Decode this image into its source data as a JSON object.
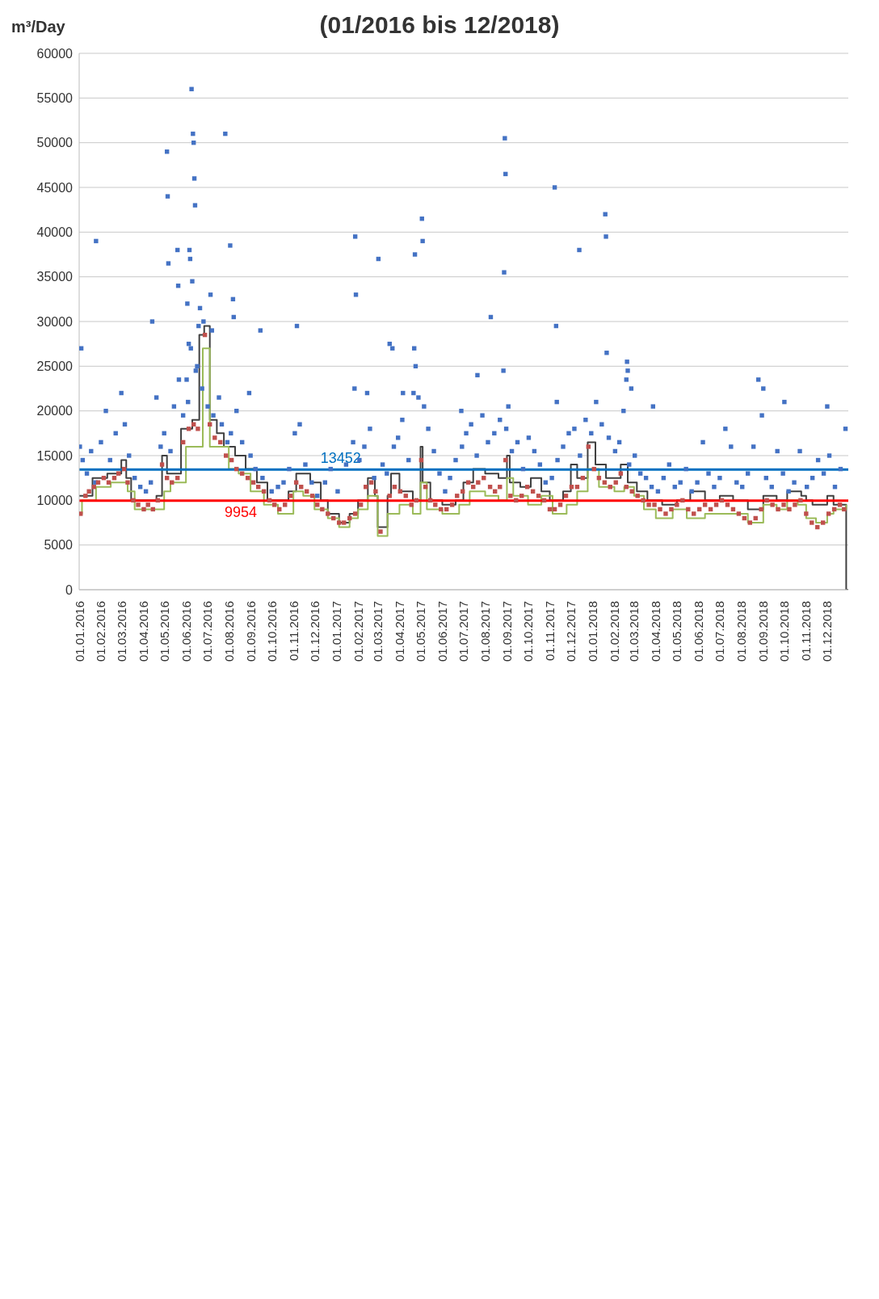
{
  "chart_data": {
    "type": "scatter",
    "title": "(01/2016 bis 12/2018)",
    "ylabel": "m³/Day",
    "xlim": [
      "2016-01-01",
      "2018-12-31"
    ],
    "ylim": [
      0,
      60000
    ],
    "yticks": [
      0,
      5000,
      10000,
      15000,
      20000,
      25000,
      30000,
      35000,
      40000,
      45000,
      50000,
      55000,
      60000
    ],
    "xticks": [
      {
        "value": "2016-01-01",
        "label": "01.01.2016"
      },
      {
        "value": "2016-02-01",
        "label": "01.02.2016"
      },
      {
        "value": "2016-03-01",
        "label": "01.03.2016"
      },
      {
        "value": "2016-04-01",
        "label": "01.04.2016"
      },
      {
        "value": "2016-05-01",
        "label": "01.05.2016"
      },
      {
        "value": "2016-06-01",
        "label": "01.06.2016"
      },
      {
        "value": "2016-07-01",
        "label": "01.07.2016"
      },
      {
        "value": "2016-08-01",
        "label": "01.08.2016"
      },
      {
        "value": "2016-09-01",
        "label": "01.09.2016"
      },
      {
        "value": "2016-10-01",
        "label": "01.10.2016"
      },
      {
        "value": "2016-11-01",
        "label": "01.11.2016"
      },
      {
        "value": "2016-12-01",
        "label": "01.12.2016"
      },
      {
        "value": "2017-01-01",
        "label": "01.01.2017"
      },
      {
        "value": "2017-02-01",
        "label": "01.02.2017"
      },
      {
        "value": "2017-03-01",
        "label": "01.03.2017"
      },
      {
        "value": "2017-04-01",
        "label": "01.04.2017"
      },
      {
        "value": "2017-05-01",
        "label": "01.05.2017"
      },
      {
        "value": "2017-06-01",
        "label": "01.06.2017"
      },
      {
        "value": "2017-07-01",
        "label": "01.07.2017"
      },
      {
        "value": "2017-08-01",
        "label": "01.08.2017"
      },
      {
        "value": "2017-09-01",
        "label": "01.09.2017"
      },
      {
        "value": "2017-10-01",
        "label": "01.10.2017"
      },
      {
        "value": "2017-11-01",
        "label": "01.11.2017"
      },
      {
        "value": "2017-12-01",
        "label": "01.12.2017"
      },
      {
        "value": "2018-01-01",
        "label": "01.01.2018"
      },
      {
        "value": "2018-02-01",
        "label": "01.02.2018"
      },
      {
        "value": "2018-03-01",
        "label": "01.03.2018"
      },
      {
        "value": "2018-04-01",
        "label": "01.04.2018"
      },
      {
        "value": "2018-05-01",
        "label": "01.05.2018"
      },
      {
        "value": "2018-06-01",
        "label": "01.06.2018"
      },
      {
        "value": "2018-07-01",
        "label": "01.07.2018"
      },
      {
        "value": "2018-08-01",
        "label": "01.08.2018"
      },
      {
        "value": "2018-09-01",
        "label": "01.09.2018"
      },
      {
        "value": "2018-10-01",
        "label": "01.10.2018"
      },
      {
        "value": "2018-11-01",
        "label": "01.11.2018"
      },
      {
        "value": "2018-12-01",
        "label": "01.12.2018"
      }
    ],
    "grid": "y",
    "marker": "square",
    "ref_lines": [
      {
        "axis": "y",
        "value": 13452,
        "label": "13452",
        "color": "#0070c0"
      },
      {
        "axis": "y",
        "value": 9954,
        "label": "9954",
        "color": "#ff0000"
      }
    ],
    "series": [
      {
        "color": "#4472c4",
        "x": [
          "2016-06-09",
          "2016-07-27",
          "2016-06-11",
          "2016-06-12",
          "2016-05-05",
          "2017-08-29",
          "2017-08-30",
          "2016-06-13",
          "2016-05-06",
          "2017-11-08",
          "2016-06-14",
          "2018-01-19",
          "2018-01-20",
          "2017-05-03",
          "2017-05-04",
          "2017-04-23",
          "2017-12-13",
          "2017-03-02",
          "2017-01-28",
          "2017-01-29",
          "2017-08-28",
          "2016-08-03",
          "2016-01-25",
          "2016-05-20",
          "2016-06-06",
          "2016-06-07",
          "2016-05-07",
          "2016-06-10",
          "2016-05-21",
          "2016-07-06",
          "2016-08-07",
          "2016-06-03",
          "2016-11-06",
          "2016-06-26",
          "2016-08-08",
          "2016-09-15",
          "2016-06-21",
          "2016-06-19",
          "2016-07-08",
          "2016-04-14",
          "2017-08-09",
          "2017-11-10",
          "2016-01-04",
          "2016-06-08",
          "2016-06-05",
          "2017-03-18",
          "2017-03-22",
          "2017-04-22",
          "2018-01-21",
          "2018-02-19",
          "2018-02-20",
          "2017-04-24",
          "2017-08-27",
          "2017-07-21",
          "2018-02-18",
          "2018-08-25",
          "2018-09-01",
          "2018-02-25",
          "2017-01-27",
          "2017-02-14",
          "2016-08-30",
          "2017-04-06",
          "2017-04-21",
          "2018-10-01",
          "2018-12-01",
          "2018-08-30",
          "2018-03-28",
          "2017-11-11",
          "2017-09-03",
          "2017-06-28",
          "2016-04-20",
          "2016-06-02",
          "2016-01-02",
          "2016-01-06",
          "2016-01-12",
          "2016-01-18",
          "2016-01-24",
          "2016-02-01",
          "2016-02-08",
          "2016-02-14",
          "2016-02-22",
          "2016-03-01",
          "2016-03-06",
          "2016-03-12",
          "2016-03-20",
          "2016-03-28",
          "2016-04-05",
          "2016-04-12",
          "2016-04-26",
          "2016-05-01",
          "2016-05-10",
          "2016-05-15",
          "2016-05-22",
          "2016-05-28",
          "2016-06-04",
          "2016-06-15",
          "2016-06-17",
          "2016-06-24",
          "2016-07-02",
          "2016-07-10",
          "2016-07-18",
          "2016-07-22",
          "2016-07-30",
          "2016-08-04",
          "2016-08-12",
          "2016-08-20",
          "2016-09-01",
          "2016-09-08",
          "2016-09-18",
          "2016-10-01",
          "2016-10-10",
          "2016-10-18",
          "2016-10-26",
          "2016-11-03",
          "2016-11-10",
          "2016-11-18",
          "2016-11-27",
          "2016-12-05",
          "2016-12-16",
          "2016-12-24",
          "2017-01-03",
          "2017-01-15",
          "2017-01-25",
          "2017-02-03",
          "2017-02-10",
          "2017-02-18",
          "2017-02-24",
          "2017-03-08",
          "2017-03-14",
          "2017-03-24",
          "2017-03-30",
          "2017-04-05",
          "2017-04-14",
          "2017-04-28",
          "2017-05-06",
          "2017-05-12",
          "2017-05-20",
          "2017-05-28",
          "2017-06-05",
          "2017-06-12",
          "2017-06-20",
          "2017-06-29",
          "2017-07-05",
          "2017-07-12",
          "2017-07-20",
          "2017-07-28",
          "2017-08-05",
          "2017-08-14",
          "2017-08-22",
          "2017-08-31",
          "2017-09-08",
          "2017-09-16",
          "2017-09-24",
          "2017-10-02",
          "2017-10-10",
          "2017-10-18",
          "2017-10-26",
          "2017-11-04",
          "2017-11-12",
          "2017-11-20",
          "2017-11-28",
          "2017-12-06",
          "2017-12-14",
          "2017-12-22",
          "2017-12-30",
          "2018-01-06",
          "2018-01-14",
          "2018-01-24",
          "2018-02-02",
          "2018-02-08",
          "2018-02-14",
          "2018-02-22",
          "2018-03-02",
          "2018-03-10",
          "2018-03-18",
          "2018-03-26",
          "2018-04-04",
          "2018-04-12",
          "2018-04-20",
          "2018-04-28",
          "2018-05-06",
          "2018-05-14",
          "2018-05-22",
          "2018-05-30",
          "2018-06-07",
          "2018-06-15",
          "2018-06-23",
          "2018-07-01",
          "2018-07-09",
          "2018-07-17",
          "2018-07-25",
          "2018-08-02",
          "2018-08-10",
          "2018-08-18",
          "2018-09-05",
          "2018-09-13",
          "2018-09-21",
          "2018-09-29",
          "2018-10-07",
          "2018-10-15",
          "2018-10-23",
          "2018-11-02",
          "2018-11-10",
          "2018-11-18",
          "2018-11-26",
          "2018-12-04",
          "2018-12-12",
          "2018-12-20",
          "2018-12-27"
        ],
        "values": [
          56000,
          51000,
          51000,
          50000,
          49000,
          50500,
          46500,
          46000,
          44000,
          45000,
          43000,
          42000,
          39500,
          41500,
          39000,
          37500,
          38000,
          37000,
          39500,
          33000,
          35500,
          38500,
          39000,
          38000,
          38000,
          37000,
          36500,
          34500,
          34000,
          33000,
          32500,
          32000,
          29500,
          30000,
          30500,
          29000,
          31500,
          29500,
          29000,
          30000,
          30500,
          29500,
          27000,
          27000,
          27500,
          27500,
          27000,
          27000,
          26500,
          25500,
          24500,
          25000,
          24500,
          24000,
          23500,
          23500,
          22500,
          22500,
          22500,
          22000,
          22000,
          22000,
          22000,
          21000,
          20500,
          19500,
          20500,
          21000,
          20500,
          20000,
          21500,
          23500,
          16000,
          14500,
          13000,
          15500,
          12000,
          16500,
          20000,
          14500,
          17500,
          22000,
          18500,
          15000,
          12500,
          11500,
          11000,
          12000,
          16000,
          17500,
          15500,
          20500,
          23500,
          19500,
          21000,
          24500,
          25000,
          22500,
          20500,
          19500,
          21500,
          18500,
          16500,
          17500,
          20000,
          16500,
          15000,
          13500,
          12500,
          11000,
          11500,
          12000,
          13500,
          17500,
          18500,
          14000,
          12000,
          10500,
          12000,
          13500,
          11000,
          14000,
          16500,
          14500,
          16000,
          18000,
          12500,
          14000,
          13000,
          16000,
          17000,
          19000,
          14500,
          21500,
          20500,
          18000,
          15500,
          13000,
          11000,
          12500,
          14500,
          16000,
          17500,
          18500,
          15000,
          19500,
          16500,
          17500,
          19000,
          18000,
          15500,
          16500,
          13500,
          17000,
          15500,
          14000,
          12000,
          12500,
          14500,
          16000,
          17500,
          18000,
          15000,
          19000,
          17500,
          21000,
          18500,
          17000,
          15500,
          16500,
          20000,
          14000,
          15000,
          13000,
          12500,
          11500,
          11000,
          12500,
          14000,
          11500,
          12000,
          13500,
          11000,
          12000,
          16500,
          13000,
          11500,
          12500,
          18000,
          16000,
          12000,
          11500,
          13000,
          16000,
          12500,
          11500,
          15500,
          13000,
          11000,
          12000,
          15500,
          11500,
          12500,
          14500,
          13000,
          15000,
          11500,
          13500,
          18000
        ]
      },
      {
        "color": "#c0504d",
        "x": [
          "2016-01-03",
          "2016-01-10",
          "2016-01-15",
          "2016-01-22",
          "2016-01-28",
          "2016-02-05",
          "2016-02-12",
          "2016-02-20",
          "2016-02-26",
          "2016-03-05",
          "2016-03-10",
          "2016-03-18",
          "2016-03-25",
          "2016-04-02",
          "2016-04-08",
          "2016-04-15",
          "2016-04-22",
          "2016-04-28",
          "2016-05-05",
          "2016-05-12",
          "2016-05-20",
          "2016-05-28",
          "2016-06-05",
          "2016-06-12",
          "2016-06-18",
          "2016-06-28",
          "2016-07-05",
          "2016-07-12",
          "2016-07-20",
          "2016-07-28",
          "2016-08-05",
          "2016-08-12",
          "2016-08-20",
          "2016-08-28",
          "2016-09-05",
          "2016-09-12",
          "2016-09-20",
          "2016-09-28",
          "2016-10-05",
          "2016-10-12",
          "2016-10-20",
          "2016-10-28",
          "2016-11-05",
          "2016-11-12",
          "2016-11-20",
          "2016-11-28",
          "2016-12-05",
          "2016-12-12",
          "2016-12-20",
          "2016-12-28",
          "2017-01-05",
          "2017-01-12",
          "2017-01-20",
          "2017-01-28",
          "2017-02-05",
          "2017-02-12",
          "2017-02-20",
          "2017-02-26",
          "2017-03-05",
          "2017-03-18",
          "2017-03-25",
          "2017-04-02",
          "2017-04-10",
          "2017-04-18",
          "2017-04-25",
          "2017-05-02",
          "2017-05-08",
          "2017-05-15",
          "2017-05-22",
          "2017-05-30",
          "2017-06-07",
          "2017-06-15",
          "2017-06-22",
          "2017-06-30",
          "2017-07-08",
          "2017-07-15",
          "2017-07-22",
          "2017-07-30",
          "2017-08-08",
          "2017-08-15",
          "2017-08-22",
          "2017-08-30",
          "2017-09-06",
          "2017-09-14",
          "2017-09-22",
          "2017-09-30",
          "2017-10-08",
          "2017-10-16",
          "2017-10-24",
          "2017-11-01",
          "2017-11-08",
          "2017-11-16",
          "2017-11-24",
          "2017-12-02",
          "2017-12-10",
          "2017-12-18",
          "2017-12-26",
          "2018-01-03",
          "2018-01-10",
          "2018-01-18",
          "2018-01-26",
          "2018-02-03",
          "2018-02-10",
          "2018-02-18",
          "2018-02-26",
          "2018-03-06",
          "2018-03-14",
          "2018-03-22",
          "2018-03-30",
          "2018-04-07",
          "2018-04-15",
          "2018-04-23",
          "2018-05-01",
          "2018-05-09",
          "2018-05-17",
          "2018-05-25",
          "2018-06-02",
          "2018-06-10",
          "2018-06-18",
          "2018-06-26",
          "2018-07-04",
          "2018-07-12",
          "2018-07-20",
          "2018-07-28",
          "2018-08-05",
          "2018-08-13",
          "2018-08-21",
          "2018-08-29",
          "2018-09-06",
          "2018-09-14",
          "2018-09-22",
          "2018-09-30",
          "2018-10-08",
          "2018-10-16",
          "2018-10-24",
          "2018-11-01",
          "2018-11-09",
          "2018-11-17",
          "2018-11-25",
          "2018-12-03",
          "2018-12-11",
          "2018-12-19",
          "2018-12-25"
        ],
        "values": [
          8500,
          10500,
          11000,
          11500,
          12000,
          12500,
          12000,
          12500,
          13000,
          13500,
          12000,
          10000,
          9500,
          9000,
          9500,
          9000,
          10000,
          14000,
          12500,
          12000,
          12500,
          16500,
          18000,
          18500,
          18000,
          28500,
          18500,
          17000,
          16500,
          15000,
          14500,
          13500,
          13000,
          12500,
          12000,
          11500,
          11000,
          10000,
          9500,
          9000,
          9500,
          10500,
          12000,
          11500,
          11000,
          10500,
          9500,
          9000,
          8500,
          8000,
          7500,
          7500,
          8000,
          8500,
          9500,
          11500,
          12000,
          11000,
          6500,
          10500,
          11500,
          11000,
          10500,
          9500,
          10000,
          14500,
          11500,
          10000,
          9500,
          9000,
          9000,
          9500,
          10500,
          11000,
          12000,
          11500,
          12000,
          12500,
          11500,
          11000,
          11500,
          14500,
          10500,
          10000,
          10500,
          11500,
          11000,
          10500,
          10000,
          9000,
          9000,
          9500,
          10500,
          11500,
          11500,
          12500,
          16000,
          13500,
          12500,
          12000,
          11500,
          12000,
          13000,
          11500,
          11000,
          10500,
          10000,
          9500,
          9500,
          9000,
          8500,
          9000,
          9500,
          10000,
          9000,
          8500,
          9000,
          9500,
          9000,
          9500,
          10000,
          9500,
          9000,
          8500,
          8000,
          7500,
          8000,
          9000,
          10000,
          9500,
          9000,
          9500,
          9000,
          9500,
          10000,
          8500,
          7500,
          7000,
          7500,
          8500,
          9000,
          9500,
          9000
        ]
      },
      {
        "type": "step",
        "color": "#404040",
        "marker": "none",
        "x": [
          "2016-01-01",
          "2016-01-20",
          "2016-02-10",
          "2016-03-01",
          "2016-03-08",
          "2016-03-15",
          "2016-04-20",
          "2016-04-28",
          "2016-05-05",
          "2016-05-25",
          "2016-06-10",
          "2016-06-20",
          "2016-06-27",
          "2016-07-05",
          "2016-07-15",
          "2016-07-25",
          "2016-08-10",
          "2016-08-25",
          "2016-09-10",
          "2016-09-25",
          "2016-10-25",
          "2016-11-05",
          "2016-11-25",
          "2016-12-10",
          "2016-12-20",
          "2017-01-05",
          "2017-01-20",
          "2017-02-01",
          "2017-02-15",
          "2017-02-25",
          "2017-03-01",
          "2017-03-15",
          "2017-03-20",
          "2017-04-01",
          "2017-04-20",
          "2017-05-01",
          "2017-05-04",
          "2017-05-15",
          "2017-06-01",
          "2017-06-20",
          "2017-07-01",
          "2017-07-15",
          "2017-08-01",
          "2017-08-20",
          "2017-09-01",
          "2017-09-05",
          "2017-09-20",
          "2017-10-05",
          "2017-10-20",
          "2017-11-01",
          "2017-11-20",
          "2017-12-01",
          "2017-12-10",
          "2017-12-25",
          "2018-01-05",
          "2018-01-20",
          "2018-02-01",
          "2018-02-10",
          "2018-02-20",
          "2018-03-05",
          "2018-03-20",
          "2018-04-10",
          "2018-05-01",
          "2018-05-20",
          "2018-06-10",
          "2018-07-01",
          "2018-07-20",
          "2018-08-10",
          "2018-09-01",
          "2018-09-20",
          "2018-10-05",
          "2018-10-25",
          "2018-11-01",
          "2018-11-10",
          "2018-12-01",
          "2018-12-10",
          "2018-12-28",
          "2018-12-31"
        ],
        "values": [
          10500,
          12500,
          13000,
          14500,
          12500,
          10000,
          10500,
          15000,
          13000,
          18000,
          19000,
          28500,
          29500,
          19000,
          17500,
          16000,
          15000,
          13500,
          12000,
          10000,
          11000,
          13000,
          12000,
          10000,
          8500,
          7500,
          8500,
          10000,
          12500,
          10500,
          7000,
          10500,
          13000,
          11000,
          10000,
          16000,
          12000,
          10000,
          9500,
          10000,
          12000,
          13500,
          13000,
          12500,
          15000,
          12000,
          11500,
          12500,
          11000,
          10000,
          11000,
          14000,
          12500,
          16500,
          14000,
          12500,
          12500,
          14000,
          12000,
          11000,
          10000,
          9500,
          10000,
          11000,
          10000,
          10500,
          10000,
          9000,
          10500,
          10000,
          11000,
          10500,
          10000,
          9500,
          10500,
          9500,
          0,
          0
        ]
      },
      {
        "type": "step",
        "color": "#9bbb59",
        "marker": "none",
        "x": [
          "2016-01-01",
          "2016-01-05",
          "2016-01-25",
          "2016-02-15",
          "2016-03-10",
          "2016-03-20",
          "2016-04-20",
          "2016-05-01",
          "2016-05-10",
          "2016-06-01",
          "2016-06-15",
          "2016-06-25",
          "2016-07-05",
          "2016-07-15",
          "2016-08-01",
          "2016-08-15",
          "2016-09-01",
          "2016-09-20",
          "2016-10-10",
          "2016-11-01",
          "2016-11-15",
          "2016-12-01",
          "2016-12-20",
          "2017-01-05",
          "2017-01-20",
          "2017-02-01",
          "2017-02-15",
          "2017-03-01",
          "2017-03-15",
          "2017-04-01",
          "2017-04-20",
          "2017-05-01",
          "2017-05-10",
          "2017-06-01",
          "2017-06-25",
          "2017-07-10",
          "2017-08-01",
          "2017-08-20",
          "2017-09-01",
          "2017-09-10",
          "2017-10-01",
          "2017-10-20",
          "2017-11-05",
          "2017-11-25",
          "2017-12-10",
          "2017-12-25",
          "2018-01-10",
          "2018-02-01",
          "2018-02-15",
          "2018-03-01",
          "2018-03-15",
          "2018-04-01",
          "2018-04-25",
          "2018-05-15",
          "2018-06-10",
          "2018-07-01",
          "2018-07-20",
          "2018-08-10",
          "2018-09-01",
          "2018-09-20",
          "2018-10-05",
          "2018-10-20",
          "2018-11-01",
          "2018-11-15",
          "2018-12-01",
          "2018-12-10",
          "2018-12-28"
        ],
        "values": [
          8500,
          10000,
          11500,
          12000,
          11000,
          9000,
          9000,
          11000,
          12000,
          16000,
          16000,
          27000,
          16000,
          16000,
          13500,
          13000,
          11000,
          9500,
          8500,
          11000,
          10500,
          9000,
          8000,
          7000,
          8000,
          9000,
          10500,
          6000,
          8500,
          9500,
          8500,
          12000,
          9000,
          8500,
          9500,
          11000,
          10500,
          10000,
          12500,
          10500,
          9500,
          10500,
          8500,
          9500,
          11000,
          13500,
          11500,
          11000,
          11500,
          10500,
          9000,
          8000,
          9000,
          8000,
          8500,
          8500,
          8500,
          7500,
          9500,
          9000,
          10000,
          9500,
          8000,
          7500,
          8500,
          9000,
          9500
        ]
      }
    ]
  }
}
